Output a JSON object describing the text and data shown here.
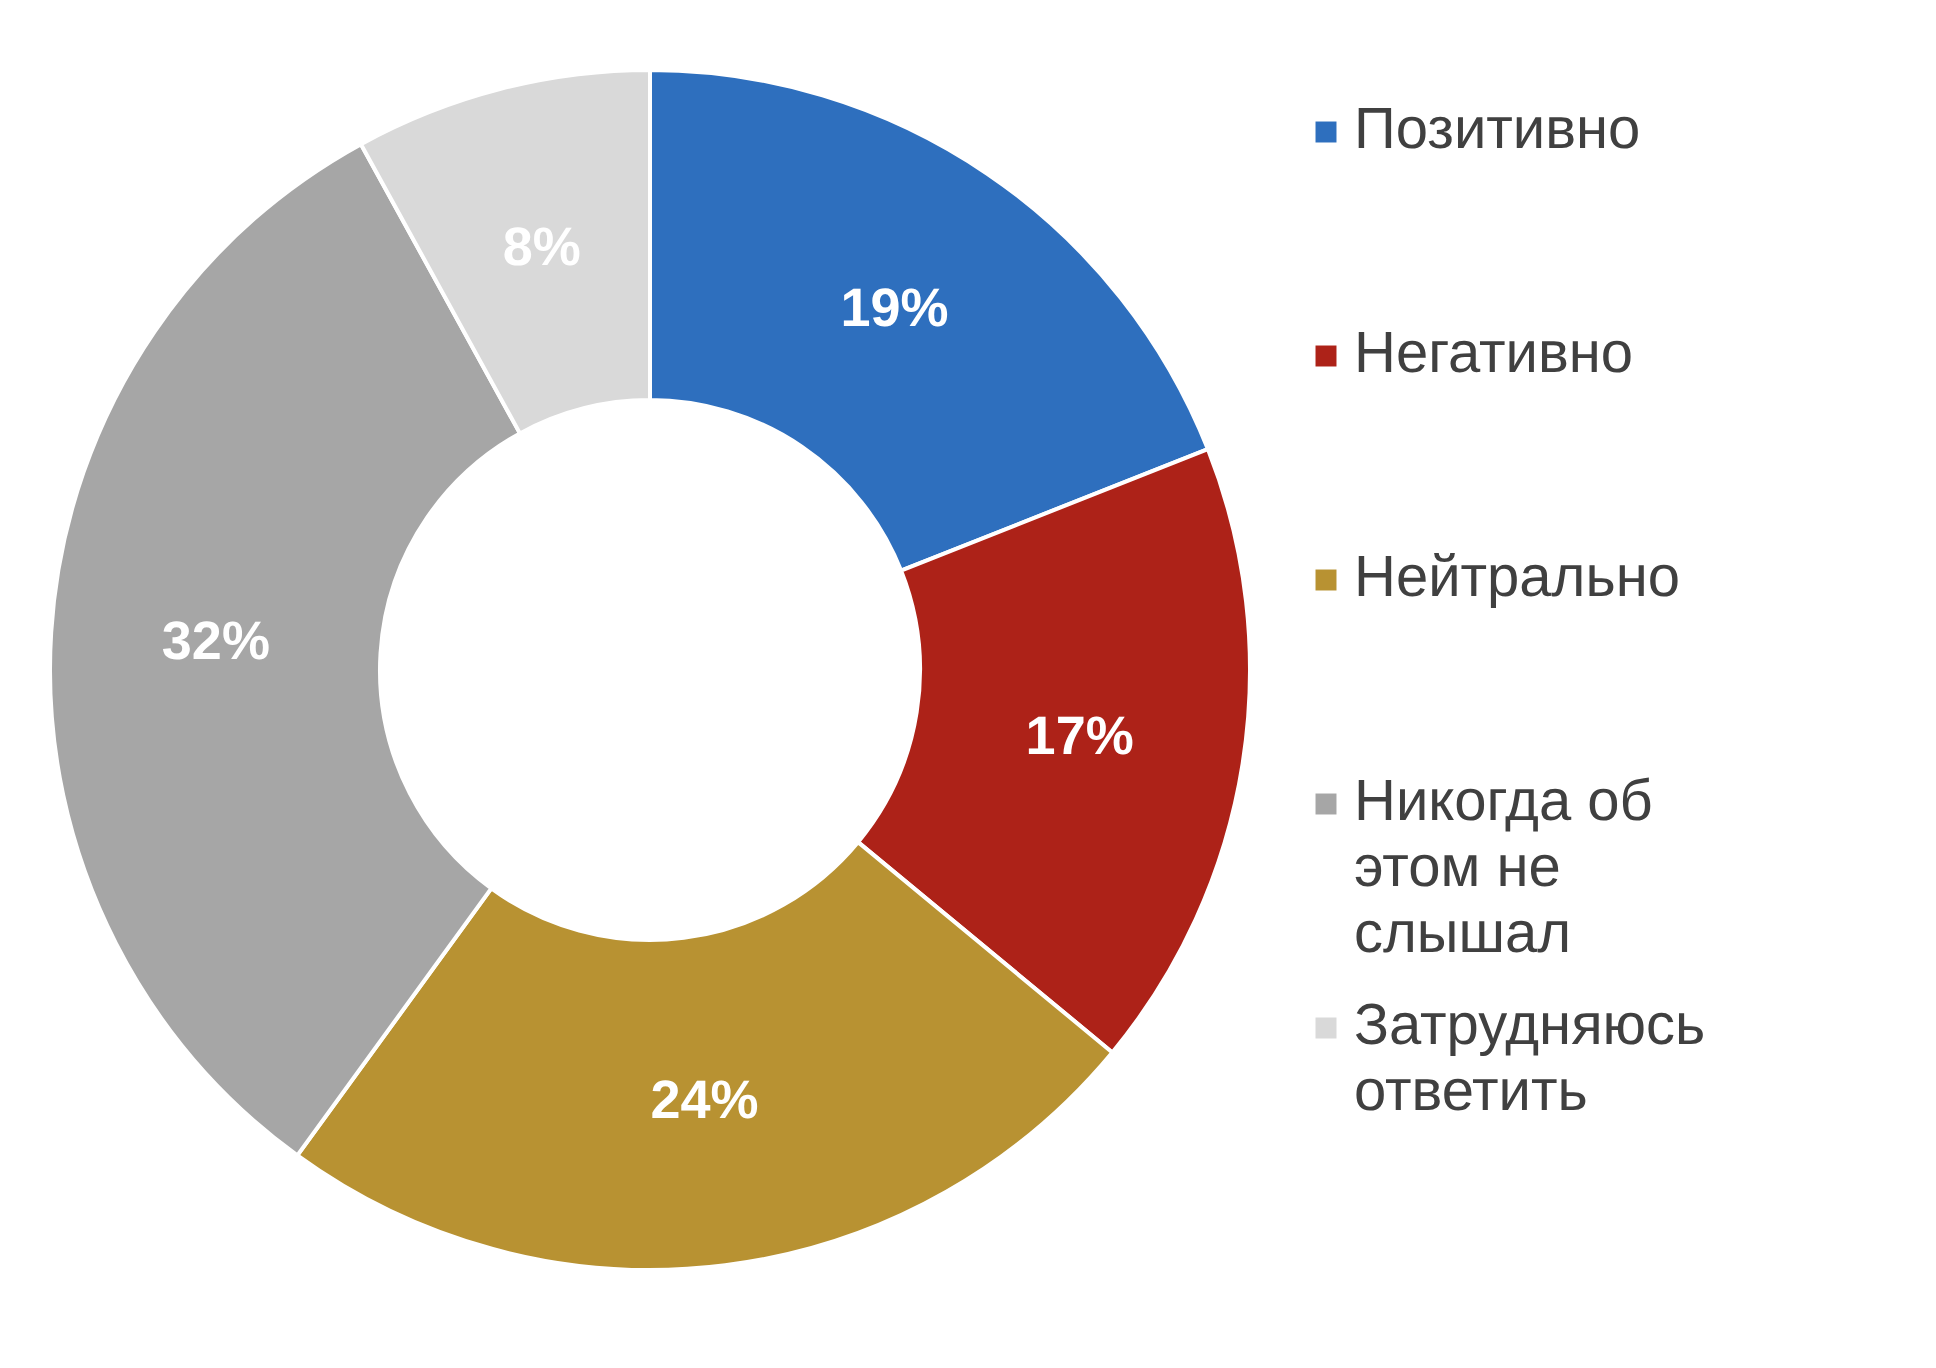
{
  "chart_data": {
    "type": "donut",
    "categories": [
      "Позитивно",
      "Негативно",
      "Нейтрально",
      "Никогда об этом не слышал",
      "Затрудняюсь ответить"
    ],
    "values": [
      19,
      17,
      24,
      32,
      8
    ],
    "value_labels": [
      "19%",
      "17%",
      "24%",
      "32%",
      "8%"
    ],
    "colors": [
      "#2e6fbe",
      "#ad2218",
      "#b89232",
      "#a6a6a6",
      "#d9d9d9"
    ],
    "legend": "right"
  }
}
